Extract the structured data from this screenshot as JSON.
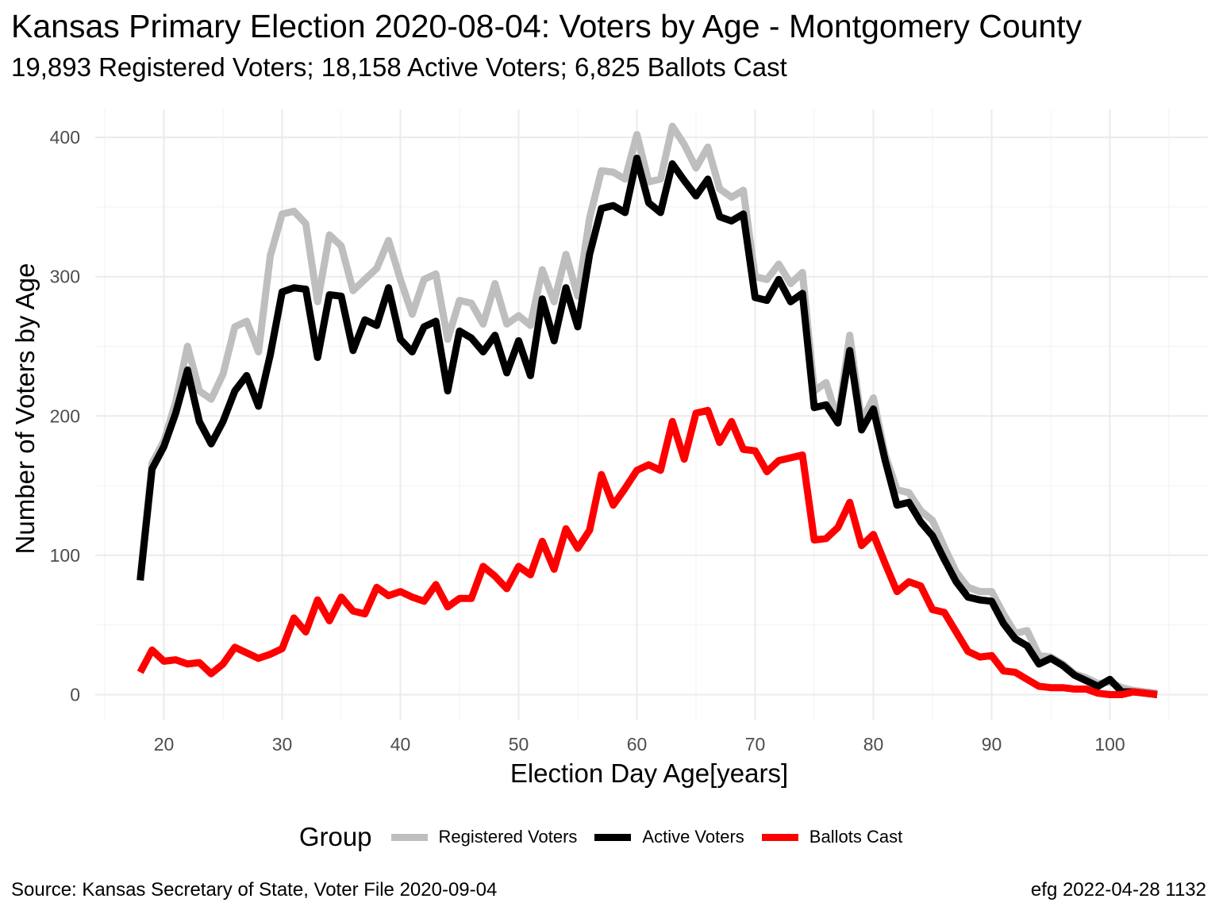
{
  "header": {
    "title": "Kansas Primary Election 2020-08-04:  Voters by Age - Montgomery County",
    "subtitle": "19,893 Registered Voters; 18,158 Active Voters; 6,825 Ballots Cast"
  },
  "legend": {
    "title": "Group"
  },
  "caption": {
    "source": "Source:  Kansas Secretary of State, Voter File  2020-09-04",
    "stamp": "efg 2022-04-28 1132"
  },
  "chart_data": {
    "type": "line",
    "xlabel": "Election Day Age[years]",
    "ylabel": "Number of Voters by Age",
    "xlim": [
      18,
      104
    ],
    "ylim": [
      0,
      410
    ],
    "x_ticks": [
      20,
      30,
      40,
      50,
      60,
      70,
      80,
      90,
      100
    ],
    "y_ticks": [
      0,
      100,
      200,
      300,
      400
    ],
    "grid": true,
    "legend_position": "bottom",
    "x": [
      18,
      19,
      20,
      21,
      22,
      23,
      24,
      25,
      26,
      27,
      28,
      29,
      30,
      31,
      32,
      33,
      34,
      35,
      36,
      37,
      38,
      39,
      40,
      41,
      42,
      43,
      44,
      45,
      46,
      47,
      48,
      49,
      50,
      51,
      52,
      53,
      54,
      55,
      56,
      57,
      58,
      59,
      60,
      61,
      62,
      63,
      64,
      65,
      66,
      67,
      68,
      69,
      70,
      71,
      72,
      73,
      74,
      75,
      76,
      77,
      78,
      79,
      80,
      81,
      82,
      83,
      84,
      85,
      86,
      87,
      88,
      89,
      90,
      91,
      92,
      93,
      94,
      95,
      96,
      97,
      98,
      99,
      100,
      101,
      102,
      103,
      104
    ],
    "series": [
      {
        "name": "Registered Voters",
        "color": "#bebebe",
        "values": [
          84,
          166,
          182,
          210,
          250,
          218,
          212,
          230,
          264,
          268,
          246,
          315,
          345,
          347,
          338,
          282,
          330,
          322,
          290,
          298,
          306,
          326,
          298,
          273,
          298,
          302,
          255,
          283,
          281,
          266,
          295,
          266,
          272,
          265,
          305,
          282,
          316,
          286,
          342,
          376,
          375,
          370,
          402,
          368,
          370,
          408,
          395,
          378,
          393,
          363,
          357,
          362,
          300,
          298,
          309,
          295,
          303,
          218,
          224,
          197,
          258,
          196,
          213,
          172,
          147,
          145,
          132,
          125,
          106,
          88,
          77,
          74,
          74,
          58,
          44,
          46,
          28,
          27,
          22,
          15,
          12,
          8,
          9,
          5,
          3,
          2,
          1
        ]
      },
      {
        "name": "Active Voters",
        "color": "#000000",
        "values": [
          82,
          162,
          178,
          202,
          233,
          196,
          180,
          196,
          218,
          229,
          207,
          244,
          289,
          292,
          291,
          242,
          287,
          286,
          247,
          269,
          265,
          292,
          255,
          246,
          264,
          268,
          218,
          261,
          256,
          246,
          258,
          231,
          254,
          229,
          284,
          254,
          292,
          264,
          316,
          349,
          351,
          346,
          385,
          353,
          346,
          381,
          369,
          358,
          370,
          343,
          340,
          345,
          285,
          283,
          298,
          282,
          288,
          206,
          208,
          195,
          247,
          190,
          205,
          168,
          136,
          138,
          124,
          114,
          97,
          81,
          70,
          68,
          67,
          51,
          40,
          35,
          22,
          26,
          21,
          14,
          10,
          6,
          11,
          2,
          2,
          1,
          0
        ]
      },
      {
        "name": "Ballots Cast",
        "color": "#ff0000",
        "values": [
          16,
          32,
          24,
          25,
          22,
          23,
          15,
          22,
          34,
          30,
          26,
          29,
          33,
          55,
          45,
          68,
          53,
          70,
          60,
          58,
          77,
          71,
          74,
          70,
          67,
          79,
          63,
          69,
          69,
          92,
          85,
          76,
          92,
          86,
          110,
          90,
          119,
          105,
          118,
          158,
          136,
          148,
          161,
          165,
          161,
          196,
          169,
          202,
          204,
          181,
          196,
          176,
          175,
          160,
          168,
          170,
          172,
          111,
          112,
          120,
          138,
          107,
          115,
          94,
          74,
          81,
          78,
          61,
          59,
          45,
          31,
          27,
          28,
          17,
          16,
          11,
          6,
          5,
          5,
          4,
          4,
          1,
          0,
          0,
          2,
          1,
          0
        ]
      }
    ]
  }
}
